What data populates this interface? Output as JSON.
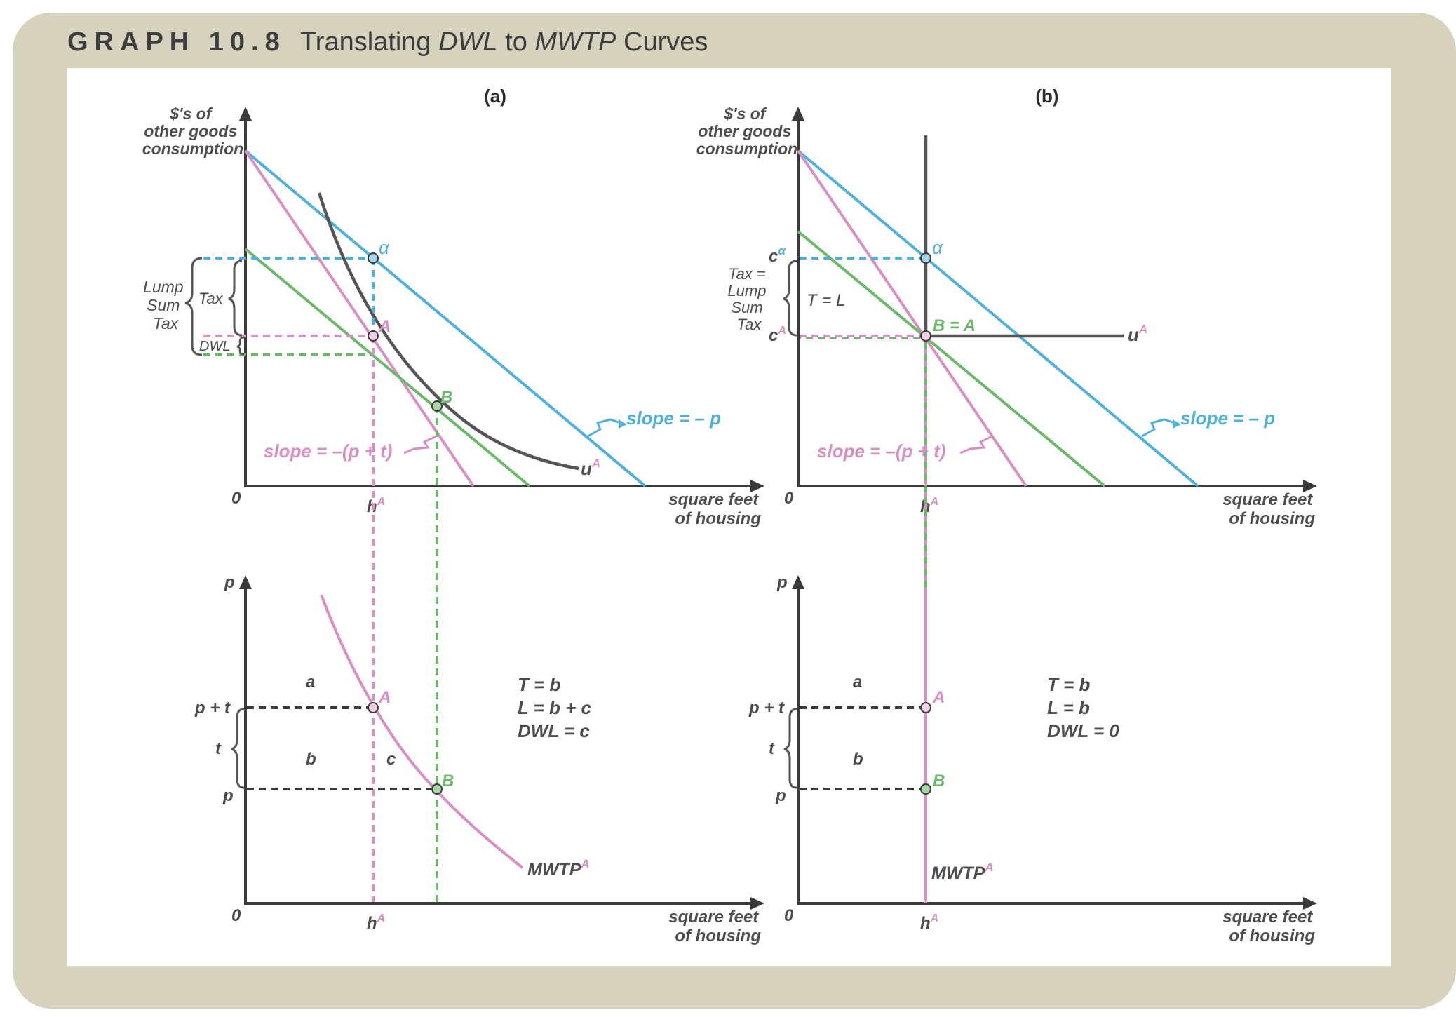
{
  "header": {
    "graph_label": "GRAPH 10.8",
    "title_part1": "Translating ",
    "title_dwl": "DWL",
    "title_part2": " to ",
    "title_mwtp": "MWTP",
    "title_part3": " Curves"
  },
  "colors": {
    "frame": "#d6d2bd",
    "blue": "#4fb0dc",
    "pink": "#d98fc3",
    "green": "#6cb86a",
    "dark": "#555555",
    "axis": "#3a3a3a"
  },
  "panel_a": {
    "label": "(a)",
    "top": {
      "y_axis_label": [
        "$'s of",
        "other goods",
        "consumption"
      ],
      "x_axis_label": [
        "square feet",
        "of housing"
      ],
      "origin": "0",
      "h_label": "h",
      "h_sup": "A",
      "point_alpha": "α",
      "point_A": "A",
      "point_B": "B",
      "utility": "u",
      "utility_sup": "A",
      "slope_blue": "slope = – p",
      "slope_pink": "slope = –(p + t)",
      "brace_lump": [
        "Lump",
        "Sum",
        "Tax"
      ],
      "brace_tax": "Tax",
      "brace_dwl": "DWL"
    },
    "bottom": {
      "y_axis_label": "p",
      "x_axis_label": [
        "square feet",
        "of housing"
      ],
      "origin": "0",
      "h_label": "h",
      "h_sup": "A",
      "p_plus_t": "p + t",
      "t": "t",
      "p": "p",
      "area_a": "a",
      "area_b": "b",
      "area_c": "c",
      "point_A": "A",
      "point_B": "B",
      "curve": "MWTP",
      "curve_sup": "A",
      "eq1": "T = b",
      "eq2": "L = b + c",
      "eq3": "DWL = c"
    }
  },
  "panel_b": {
    "label": "(b)",
    "top": {
      "y_axis_label": [
        "$'s of",
        "other goods",
        "consumption"
      ],
      "x_axis_label": [
        "square feet",
        "of housing"
      ],
      "origin": "0",
      "h_label": "h",
      "h_sup": "A",
      "c_label": "c",
      "c_alpha_sup": "α",
      "c_A_sup": "A",
      "point_alpha": "α",
      "point_BA": "B = A",
      "utility": "u",
      "utility_sup": "A",
      "slope_blue": "slope = – p",
      "slope_pink": "slope = –(p + t)",
      "brace_text": [
        "Tax =",
        "Lump",
        "Sum",
        "Tax"
      ],
      "t_eq_l": "T = L"
    },
    "bottom": {
      "y_axis_label": "p",
      "x_axis_label": [
        "square feet",
        "of housing"
      ],
      "origin": "0",
      "h_label": "h",
      "h_sup": "A",
      "p_plus_t": "p + t",
      "t": "t",
      "p": "p",
      "area_a": "a",
      "area_b": "b",
      "point_A": "A",
      "point_B": "B",
      "curve": "MWTP",
      "curve_sup": "A",
      "eq1": "T = b",
      "eq2": "L = b",
      "eq3": "DWL = 0"
    }
  }
}
